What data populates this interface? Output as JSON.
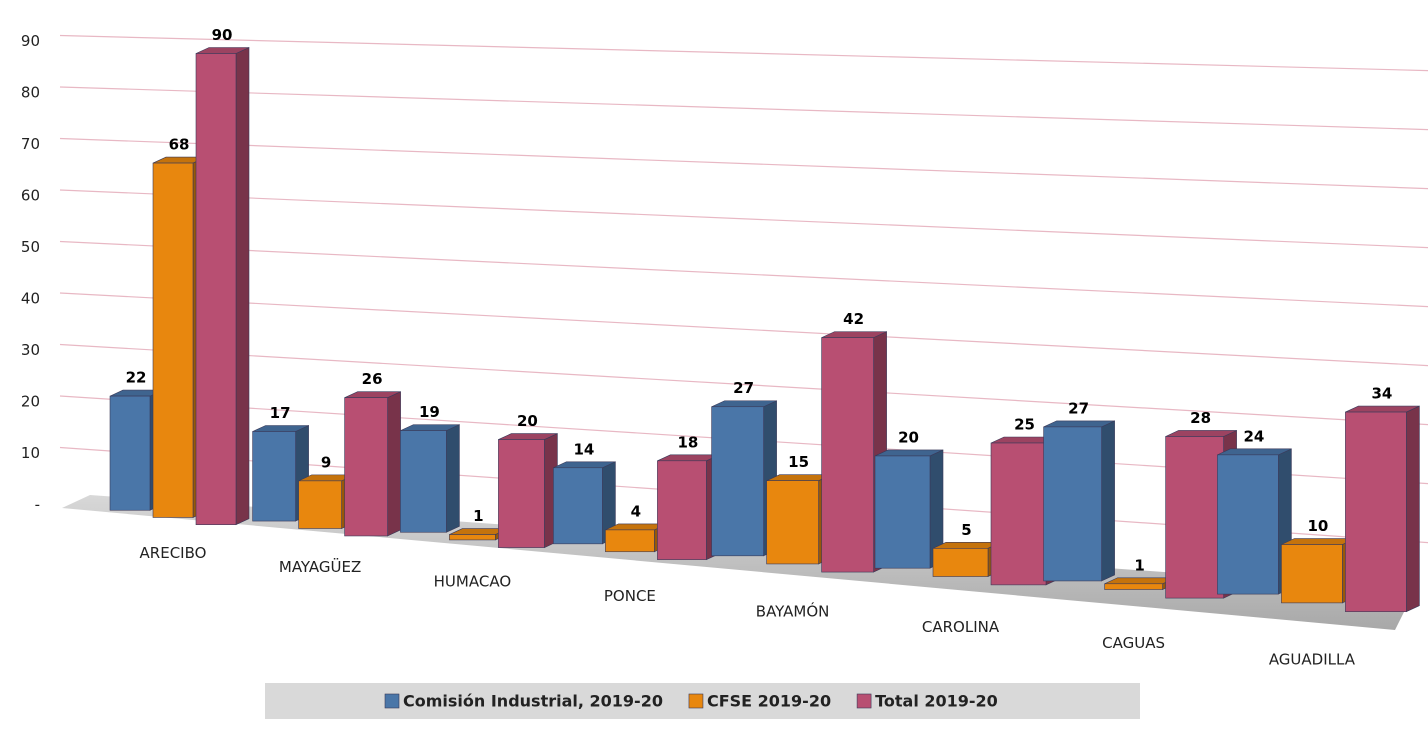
{
  "chart_data": {
    "type": "bar",
    "categories": [
      "ARECIBO",
      "MAYAGÜEZ",
      "HUMACAO",
      "PONCE",
      "BAYAMÓN",
      "CAROLINA",
      "CAGUAS",
      "AGUADILLA"
    ],
    "series": [
      {
        "name": "Comisión Industrial, 2019-20",
        "color": "#4a76a8",
        "values": [
          22,
          17,
          19,
          14,
          27,
          20,
          27,
          24
        ]
      },
      {
        "name": "CFSE 2019-20",
        "color": "#e8870e",
        "values": [
          68,
          9,
          1,
          4,
          15,
          5,
          1,
          10
        ]
      },
      {
        "name": "Total 2019-20",
        "color": "#b84f72",
        "values": [
          90,
          26,
          20,
          18,
          42,
          25,
          28,
          34
        ]
      }
    ],
    "ylim": [
      0,
      90
    ],
    "yticks": [
      {
        "value": 0,
        "label": "-"
      },
      10,
      20,
      30,
      40,
      50,
      60,
      70,
      80,
      90
    ],
    "grid": true,
    "legend": "bottom"
  }
}
